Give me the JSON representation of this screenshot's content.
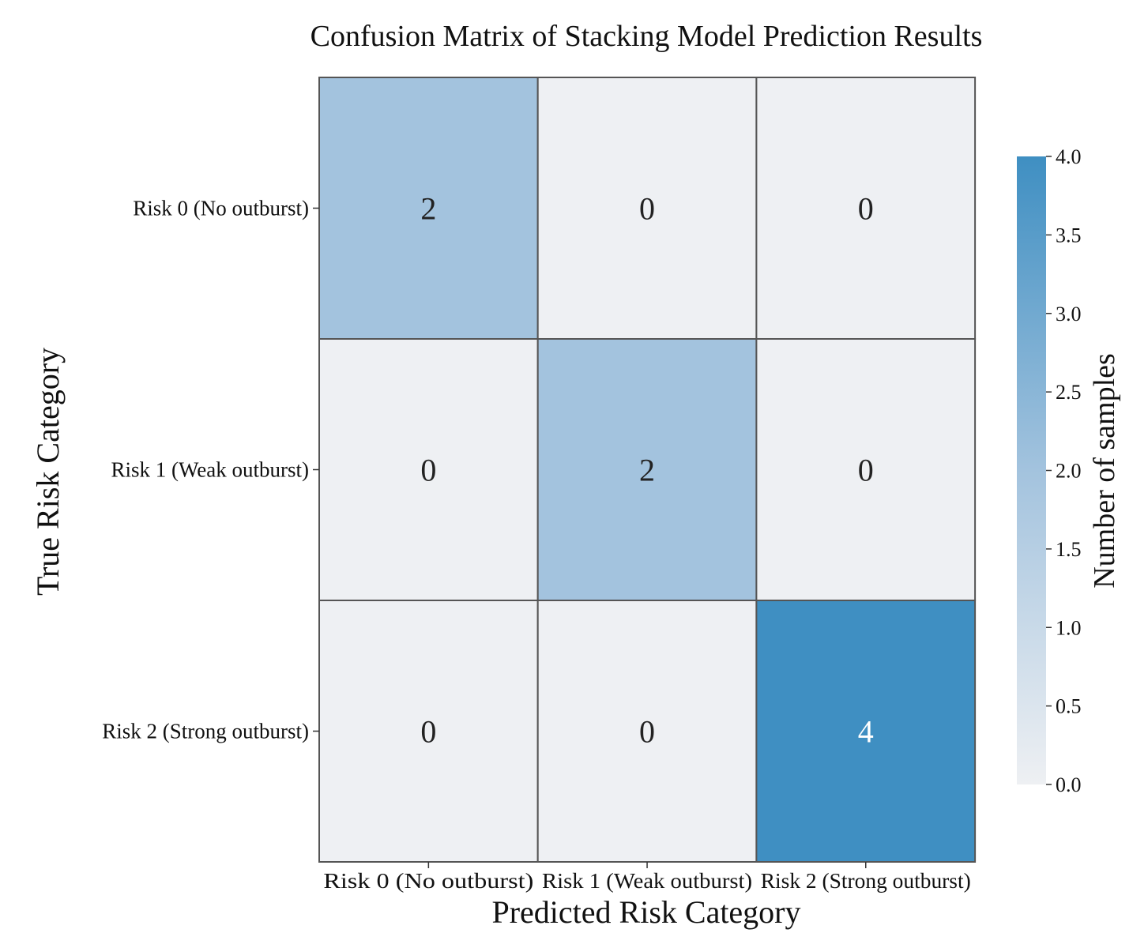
{
  "chart_data": {
    "type": "heatmap",
    "title": "Confusion Matrix of Stacking Model Prediction Results",
    "xlabel": "Predicted Risk Category",
    "ylabel": "True Risk Category",
    "x_categories": [
      "Risk 0 (No outburst)",
      "Risk 1 (Weak outburst)",
      "Risk 2 (Strong outburst)"
    ],
    "y_categories": [
      "Risk 0 (No outburst)",
      "Risk 1 (Weak outburst)",
      "Risk 2 (Strong outburst)"
    ],
    "values": [
      [
        2,
        0,
        0
      ],
      [
        0,
        2,
        0
      ],
      [
        0,
        0,
        4
      ]
    ],
    "colorbar": {
      "label": "Number of samples",
      "range": [
        0.0,
        4.0
      ],
      "ticks": [
        "0.0",
        "0.5",
        "1.0",
        "1.5",
        "2.0",
        "2.5",
        "3.0",
        "3.5",
        "4.0"
      ],
      "colors": [
        "#eef0f3",
        "#a3c3de",
        "#3f8fc2"
      ]
    }
  }
}
